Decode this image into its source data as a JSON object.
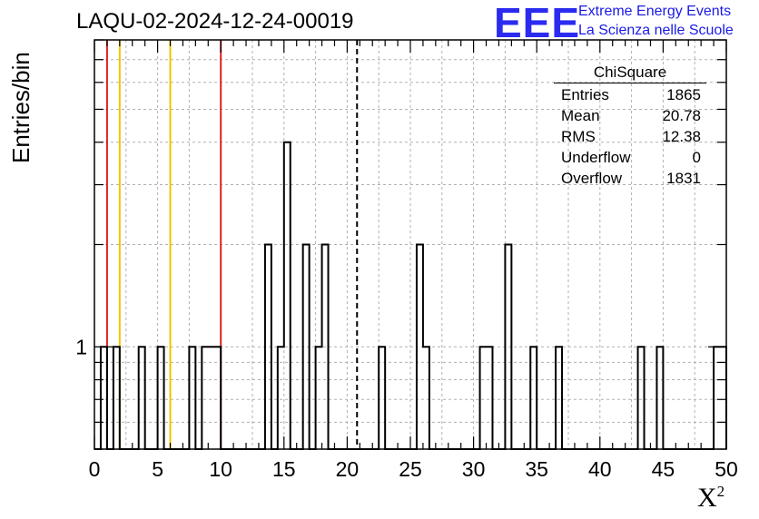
{
  "header": {
    "title": "LAQU-02-2024-12-24-00019",
    "logo_text": "EEE",
    "logo_line1": "Extreme Energy Events",
    "logo_line2": "La Scienza nelle Scuole"
  },
  "stats": {
    "title": "ChiSquare",
    "rows": [
      {
        "label": "Entries",
        "value": "1865"
      },
      {
        "label": "Mean",
        "value": "20.78"
      },
      {
        "label": "RMS",
        "value": "12.38"
      },
      {
        "label": "Underflow",
        "value": "0"
      },
      {
        "label": "Overflow",
        "value": "1831"
      }
    ]
  },
  "chart_data": {
    "type": "bar",
    "title": "LAQU-02-2024-12-24-00019",
    "xlabel": "X",
    "xlabel_sup": "2",
    "ylabel": "Entries/bin",
    "xlim": [
      0,
      50
    ],
    "ylim": [
      0.5,
      8
    ],
    "yscale": "log",
    "bin_width": 0.5,
    "grid": true,
    "x_ticks": [
      0,
      5,
      10,
      15,
      20,
      25,
      30,
      35,
      40,
      45,
      50
    ],
    "y_tick_labels": [
      {
        "value": 1,
        "label": "1"
      }
    ],
    "bins": [
      {
        "x": 0.5,
        "count": 1
      },
      {
        "x": 1.5,
        "count": 1
      },
      {
        "x": 3.5,
        "count": 1
      },
      {
        "x": 5.0,
        "count": 1
      },
      {
        "x": 7.5,
        "count": 1
      },
      {
        "x": 8.5,
        "count": 1
      },
      {
        "x": 9.0,
        "count": 1
      },
      {
        "x": 9.5,
        "count": 1
      },
      {
        "x": 13.5,
        "count": 2
      },
      {
        "x": 14.5,
        "count": 1
      },
      {
        "x": 15.0,
        "count": 4
      },
      {
        "x": 16.5,
        "count": 2
      },
      {
        "x": 17.5,
        "count": 1
      },
      {
        "x": 18.0,
        "count": 2
      },
      {
        "x": 22.5,
        "count": 1
      },
      {
        "x": 25.5,
        "count": 2
      },
      {
        "x": 26.0,
        "count": 1
      },
      {
        "x": 30.5,
        "count": 1
      },
      {
        "x": 31.0,
        "count": 1
      },
      {
        "x": 32.5,
        "count": 2
      },
      {
        "x": 34.5,
        "count": 1
      },
      {
        "x": 36.5,
        "count": 1
      },
      {
        "x": 43.0,
        "count": 1
      },
      {
        "x": 44.5,
        "count": 1
      },
      {
        "x": 49.0,
        "count": 1
      },
      {
        "x": 49.5,
        "count": 1
      }
    ],
    "reference_lines": [
      {
        "x": 1,
        "color": "#dd2222",
        "style": "solid"
      },
      {
        "x": 2,
        "color": "#f2c300",
        "style": "solid"
      },
      {
        "x": 6,
        "color": "#f2c300",
        "style": "solid"
      },
      {
        "x": 10,
        "color": "#dd2222",
        "style": "solid"
      },
      {
        "x": 20.78,
        "color": "#000000",
        "style": "dashed"
      }
    ]
  }
}
